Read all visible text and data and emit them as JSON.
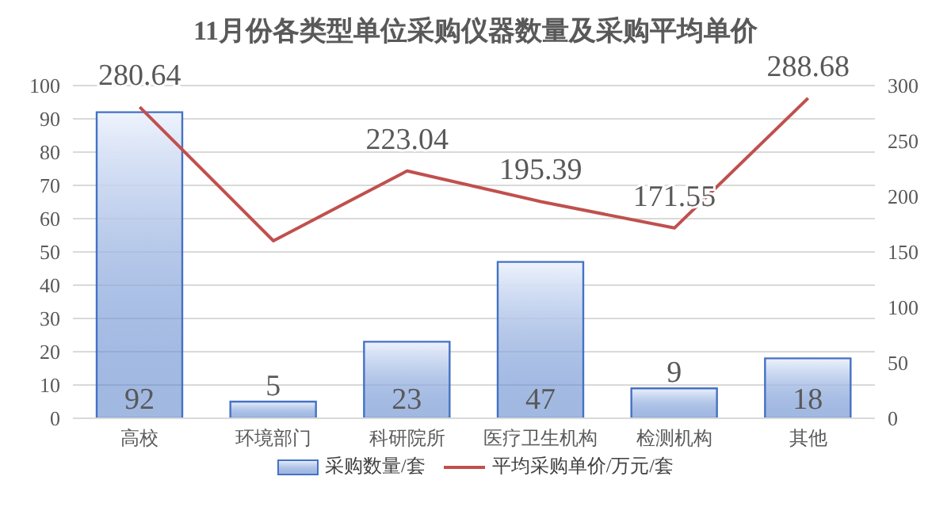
{
  "chart_data": {
    "type": "bar",
    "title": "11月份各类型单位采购仪器数量及采购平均单价",
    "categories": [
      "高校",
      "环境部门",
      "科研院所",
      "医疗卫生机构",
      "检测机构",
      "其他"
    ],
    "series": [
      {
        "name": "采购数量/套",
        "color": "#4472c4",
        "values": [
          92,
          5,
          23,
          47,
          9,
          18
        ],
        "value_labels": [
          "92",
          "5",
          "23",
          "47",
          "9",
          "18"
        ]
      },
      {
        "name": "平均采购单价/万元/套",
        "type": "line",
        "axis": "y2",
        "color": "#c0504d",
        "values": [
          280.64,
          160,
          223.04,
          195.39,
          171.55,
          288.68
        ],
        "value_labels": [
          "280.64",
          null,
          "223.04",
          "195.39",
          "171.55",
          "288.68"
        ]
      }
    ],
    "ylim": [
      0,
      100
    ],
    "yticks": [
      0,
      10,
      20,
      30,
      40,
      50,
      60,
      70,
      80,
      90,
      100
    ],
    "y2lim": [
      0,
      300
    ],
    "y2ticks": [
      0,
      50,
      100,
      150,
      200,
      250,
      300
    ],
    "grid": "y",
    "legend": "bottom",
    "marker": "none",
    "line_style": "solid"
  }
}
